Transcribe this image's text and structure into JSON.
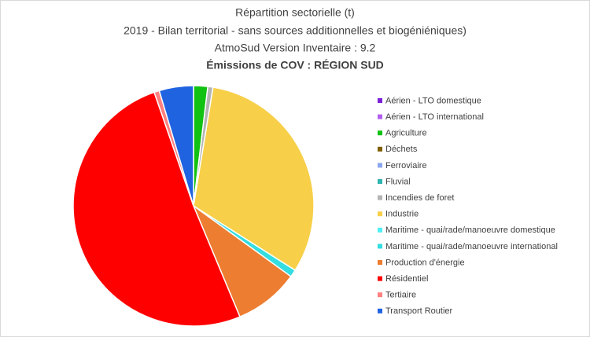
{
  "chart_data": {
    "type": "pie",
    "title_lines": [
      "Répartition sectorielle (t)",
      "2019 - Bilan territorial - sans sources additionnelles et biogéniéniques)",
      "AtmoSud Version Inventaire : 9.2",
      "Émissions de COV : RÉGION SUD"
    ],
    "categories": [
      "Aérien - LTO domestique",
      "Aérien - LTO international",
      "Agriculture",
      "Déchets",
      "Ferroviaire",
      "Fluvial",
      "Incendies de foret",
      "Industrie",
      "Maritime - quai/rade/manoeuvre domestique",
      "Maritime - quai/rade/manoeuvre international",
      "Production d'énergie",
      "Résidentiel",
      "Tertiaire",
      "Transport Routier"
    ],
    "values": [
      0,
      0,
      1.9,
      0,
      0,
      0,
      0.7,
      31.4,
      0,
      1.0,
      8.7,
      51,
      0.7,
      4.6
    ],
    "colors": [
      "#7b1fd8",
      "#b45cf0",
      "#12c212",
      "#7f6000",
      "#8aa6ee",
      "#2fb4b0",
      "#b4b4b4",
      "#f7cf48",
      "#4ef0f5",
      "#33dde0",
      "#ed7d31",
      "#ff0000",
      "#ff8080",
      "#1f63e0"
    ],
    "legend": "right"
  }
}
